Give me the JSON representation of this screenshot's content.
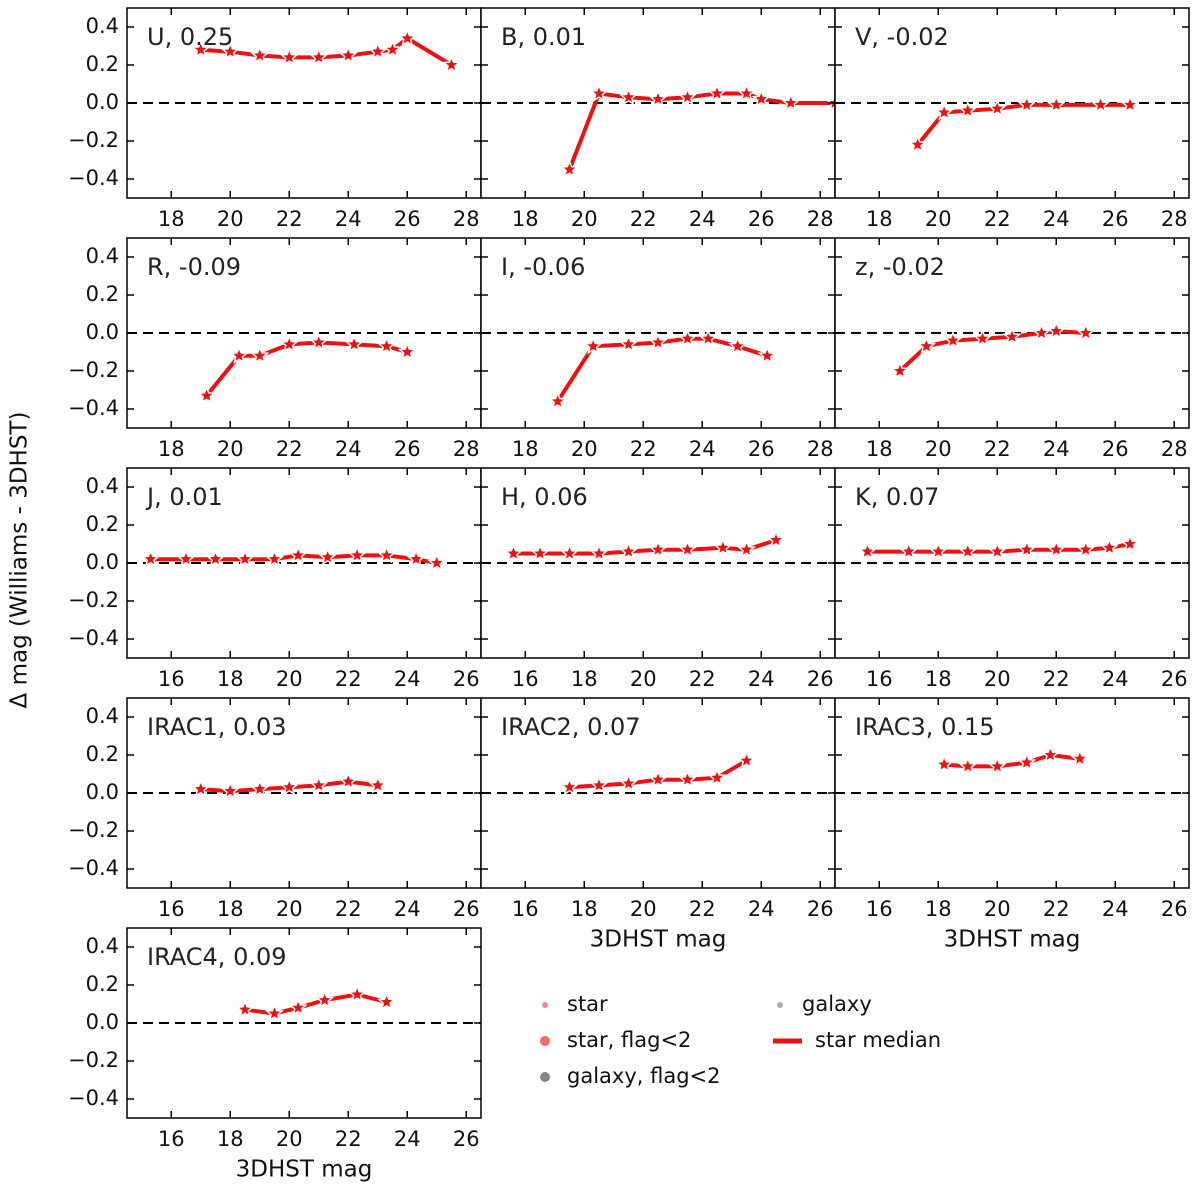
{
  "y_label": "Δ mag (Williams - 3DHST)",
  "legend": [
    {
      "name": "star",
      "color": "#ff6666",
      "marker": "small-dot"
    },
    {
      "name": "star, flag<2",
      "color": "#ee4444",
      "marker": "dot"
    },
    {
      "name": "galaxy, flag<2",
      "color": "#666666",
      "marker": "dot"
    },
    {
      "name": "galaxy",
      "color": "#999999",
      "marker": "small-dot"
    },
    {
      "name": "star median",
      "color": "#ee1111",
      "marker": "line"
    }
  ],
  "chart_data": [
    {
      "type": "line",
      "annotation": "U, 0.25",
      "xlim": [
        16.5,
        28.5
      ],
      "xticks": [
        18,
        20,
        22,
        24,
        26,
        28
      ],
      "ylim": [
        -0.5,
        0.5
      ],
      "yticks": [
        {
          "value": -0.4,
          "label": "−0.4"
        },
        {
          "value": -0.2,
          "label": "−0.2"
        },
        {
          "value": 0,
          "label": "0.0"
        },
        0.2,
        0.4
      ],
      "reference_line": 0,
      "series": [
        {
          "color": "#ee1111",
          "x": [
            19,
            20,
            21,
            22,
            23,
            24,
            25,
            25.5,
            26,
            27.5
          ],
          "values": [
            0.28,
            0.27,
            0.25,
            0.24,
            0.24,
            0.25,
            0.27,
            0.28,
            0.34,
            0.2
          ]
        }
      ]
    },
    {
      "type": "line",
      "annotation": "B, 0.01",
      "xlim": [
        16.5,
        28.5
      ],
      "xticks": [
        18,
        20,
        22,
        24,
        26,
        28
      ],
      "ylim": [
        -0.5,
        0.5
      ],
      "yticks": [
        -0.4,
        -0.2,
        0,
        0.2,
        0.4
      ],
      "reference_line": 0,
      "series": [
        {
          "color": "#ee1111",
          "x": [
            19.5,
            20.5,
            21.5,
            22.5,
            23.5,
            24.5,
            25.5,
            26,
            27,
            28.5
          ],
          "values": [
            -0.35,
            0.05,
            0.03,
            0.02,
            0.03,
            0.05,
            0.05,
            0.02,
            0,
            0
          ]
        }
      ]
    },
    {
      "type": "line",
      "annotation": "V, -0.02",
      "xlim": [
        16.5,
        28.5
      ],
      "xticks": [
        18,
        20,
        22,
        24,
        26,
        28
      ],
      "ylim": [
        -0.5,
        0.5
      ],
      "yticks": [
        -0.4,
        -0.2,
        0,
        0.2,
        0.4
      ],
      "reference_line": 0,
      "series": [
        {
          "color": "#ee1111",
          "x": [
            19.3,
            20.2,
            21,
            22,
            23,
            24,
            25.5,
            26.5
          ],
          "values": [
            -0.22,
            -0.05,
            -0.04,
            -0.03,
            -0.01,
            -0.01,
            -0.01,
            -0.01
          ]
        }
      ]
    },
    {
      "type": "line",
      "annotation": "R, -0.09",
      "xlim": [
        16.5,
        28.5
      ],
      "xticks": [
        18,
        20,
        22,
        24,
        26,
        28
      ],
      "ylim": [
        -0.5,
        0.5
      ],
      "yticks": [
        {
          "value": -0.4,
          "label": "−0.4"
        },
        {
          "value": -0.2,
          "label": "−0.2"
        },
        {
          "value": 0,
          "label": "0.0"
        },
        0.2,
        0.4
      ],
      "reference_line": 0,
      "series": [
        {
          "color": "#ee1111",
          "x": [
            19.2,
            20.3,
            21,
            22,
            23,
            24.2,
            25.3,
            26
          ],
          "values": [
            -0.33,
            -0.12,
            -0.12,
            -0.06,
            -0.05,
            -0.06,
            -0.07,
            -0.1
          ]
        }
      ]
    },
    {
      "type": "line",
      "annotation": "I, -0.06",
      "xlim": [
        16.5,
        28.5
      ],
      "xticks": [
        18,
        20,
        22,
        24,
        26,
        28
      ],
      "ylim": [
        -0.5,
        0.5
      ],
      "yticks": [
        -0.4,
        -0.2,
        0,
        0.2,
        0.4
      ],
      "reference_line": 0,
      "series": [
        {
          "color": "#ee1111",
          "x": [
            19.1,
            20.3,
            21.5,
            22.5,
            23.5,
            24.2,
            25.2,
            26.2
          ],
          "values": [
            -0.36,
            -0.07,
            -0.06,
            -0.05,
            -0.03,
            -0.03,
            -0.07,
            -0.12
          ]
        }
      ]
    },
    {
      "type": "line",
      "annotation": "z, -0.02",
      "xlim": [
        16.5,
        28.5
      ],
      "xticks": [
        18,
        20,
        22,
        24,
        26,
        28
      ],
      "ylim": [
        -0.5,
        0.5
      ],
      "yticks": [
        -0.4,
        -0.2,
        0,
        0.2,
        0.4
      ],
      "reference_line": 0,
      "series": [
        {
          "color": "#ee1111",
          "x": [
            18.7,
            19.6,
            20.5,
            21.5,
            22.5,
            23.5,
            24,
            25
          ],
          "values": [
            -0.2,
            -0.07,
            -0.04,
            -0.03,
            -0.02,
            0,
            0.01,
            0
          ]
        }
      ]
    },
    {
      "type": "line",
      "annotation": "J, 0.01",
      "xlim": [
        14.5,
        26.5
      ],
      "xticks": [
        16,
        18,
        20,
        22,
        24,
        26
      ],
      "ylim": [
        -0.5,
        0.5
      ],
      "yticks": [
        {
          "value": -0.4,
          "label": "−0.4"
        },
        {
          "value": -0.2,
          "label": "−0.2"
        },
        {
          "value": 0,
          "label": "0.0"
        },
        0.2,
        0.4
      ],
      "reference_line": 0,
      "series": [
        {
          "color": "#ee1111",
          "x": [
            15.3,
            16.5,
            17.5,
            18.5,
            19.5,
            20.3,
            21.3,
            22.3,
            23.3,
            24.3,
            25
          ],
          "values": [
            0.02,
            0.02,
            0.02,
            0.02,
            0.02,
            0.04,
            0.03,
            0.04,
            0.04,
            0.02,
            0
          ]
        }
      ]
    },
    {
      "type": "line",
      "annotation": "H, 0.06",
      "xlim": [
        14.5,
        26.5
      ],
      "xticks": [
        16,
        18,
        20,
        22,
        24,
        26
      ],
      "ylim": [
        -0.5,
        0.5
      ],
      "yticks": [
        -0.4,
        -0.2,
        0,
        0.2,
        0.4
      ],
      "reference_line": 0,
      "series": [
        {
          "color": "#ee1111",
          "x": [
            15.6,
            16.5,
            17.5,
            18.5,
            19.5,
            20.5,
            21.5,
            22.7,
            23.5,
            24.5
          ],
          "values": [
            0.05,
            0.05,
            0.05,
            0.05,
            0.06,
            0.07,
            0.07,
            0.08,
            0.07,
            0.12
          ]
        }
      ]
    },
    {
      "type": "line",
      "annotation": "K, 0.07",
      "xlim": [
        14.5,
        26.5
      ],
      "xticks": [
        16,
        18,
        20,
        22,
        24,
        26
      ],
      "ylim": [
        -0.5,
        0.5
      ],
      "yticks": [
        -0.4,
        -0.2,
        0,
        0.2,
        0.4
      ],
      "reference_line": 0,
      "series": [
        {
          "color": "#ee1111",
          "x": [
            15.6,
            17,
            18,
            19,
            20,
            21,
            22,
            23,
            23.8,
            24.5
          ],
          "values": [
            0.06,
            0.06,
            0.06,
            0.06,
            0.06,
            0.07,
            0.07,
            0.07,
            0.08,
            0.1
          ]
        }
      ]
    },
    {
      "type": "line",
      "annotation": "IRAC1, 0.03",
      "xlim": [
        14.5,
        26.5
      ],
      "xticks": [
        16,
        18,
        20,
        22,
        24,
        26
      ],
      "ylim": [
        -0.5,
        0.5
      ],
      "yticks": [
        {
          "value": -0.4,
          "label": "−0.4"
        },
        {
          "value": -0.2,
          "label": "−0.2"
        },
        {
          "value": 0,
          "label": "0.0"
        },
        0.2,
        0.4
      ],
      "reference_line": 0,
      "series": [
        {
          "color": "#ee1111",
          "x": [
            17,
            18,
            19,
            20,
            21,
            22,
            23
          ],
          "values": [
            0.02,
            0.01,
            0.02,
            0.03,
            0.04,
            0.06,
            0.04
          ]
        }
      ]
    },
    {
      "type": "line",
      "annotation": "IRAC2, 0.07",
      "x_label": "3DHST mag",
      "xlim": [
        14.5,
        26.5
      ],
      "xticks": [
        16,
        18,
        20,
        22,
        24,
        26
      ],
      "ylim": [
        -0.5,
        0.5
      ],
      "yticks": [
        -0.4,
        -0.2,
        0,
        0.2,
        0.4
      ],
      "reference_line": 0,
      "series": [
        {
          "color": "#ee1111",
          "x": [
            17.5,
            18.5,
            19.5,
            20.5,
            21.5,
            22.5,
            23.5
          ],
          "values": [
            0.03,
            0.04,
            0.05,
            0.07,
            0.07,
            0.08,
            0.17
          ]
        }
      ]
    },
    {
      "type": "line",
      "annotation": "IRAC3, 0.15",
      "x_label": "3DHST mag",
      "xlim": [
        14.5,
        26.5
      ],
      "xticks": [
        16,
        18,
        20,
        22,
        24,
        26
      ],
      "ylim": [
        -0.5,
        0.5
      ],
      "yticks": [
        -0.4,
        -0.2,
        0,
        0.2,
        0.4
      ],
      "reference_line": 0,
      "series": [
        {
          "color": "#ee1111",
          "x": [
            18.2,
            19,
            20,
            21,
            21.8,
            22.8
          ],
          "values": [
            0.15,
            0.14,
            0.14,
            0.16,
            0.2,
            0.18
          ]
        }
      ]
    },
    {
      "type": "line",
      "annotation": "IRAC4, 0.09",
      "x_label": "3DHST mag",
      "xlim": [
        14.5,
        26.5
      ],
      "xticks": [
        16,
        18,
        20,
        22,
        24,
        26
      ],
      "ylim": [
        -0.5,
        0.5
      ],
      "yticks": [
        {
          "value": -0.4,
          "label": "−0.4"
        },
        {
          "value": -0.2,
          "label": "−0.2"
        },
        {
          "value": 0,
          "label": "0.0"
        },
        0.2,
        0.4
      ],
      "reference_line": 0,
      "series": [
        {
          "color": "#ee1111",
          "x": [
            18.5,
            19.5,
            20.3,
            21.2,
            22.3,
            23.3
          ],
          "values": [
            0.07,
            0.05,
            0.08,
            0.12,
            0.15,
            0.11
          ]
        }
      ]
    }
  ]
}
